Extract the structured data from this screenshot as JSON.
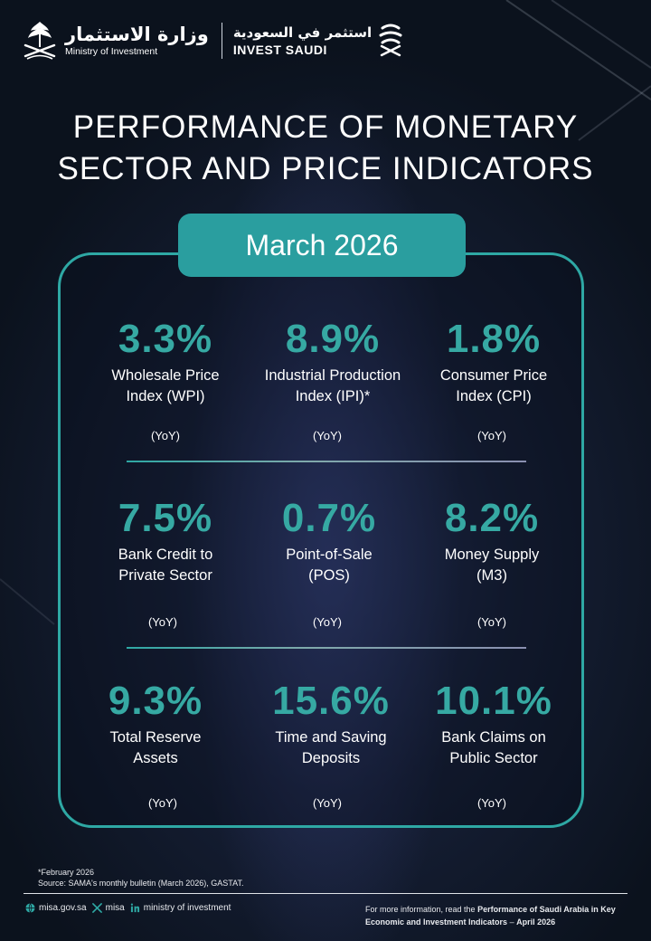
{
  "header": {
    "ministry_ar": "وزارة الاستثمار",
    "ministry_en": "Ministry of Investment",
    "invest_ar": "استثمر في السعودية",
    "invest_en": "INVEST SAUDI",
    "icons": [
      "saudi-emblem-icon",
      "invest-saudi-logo-icon"
    ]
  },
  "title": {
    "line1": "PERFORMANCE OF MONETARY",
    "line2": "SECTOR AND PRICE INDICATORS"
  },
  "period": "March 2026",
  "indicators": [
    {
      "value": "3.3",
      "unit": "%",
      "label1": "Wholesale Price",
      "label2": "Index (WPI)",
      "basis": "(YoY)"
    },
    {
      "value": "8.9",
      "unit": "%",
      "label1": "Industrial Production",
      "label2": "Index (IPI)*",
      "basis": "(YoY)"
    },
    {
      "value": "1.8",
      "unit": "%",
      "label1": "Consumer Price",
      "label2": "Index (CPI)",
      "basis": "(YoY)"
    },
    {
      "value": "7.5",
      "unit": "%",
      "label1": "Bank Credit to",
      "label2": "Private Sector",
      "basis": "(YoY)"
    },
    {
      "value": "0.7",
      "unit": "%",
      "label1": "Point-of-Sale",
      "label2": "(POS)",
      "basis": "(YoY)"
    },
    {
      "value": "8.2",
      "unit": "%",
      "label1": "Money Supply",
      "label2": "(M3)",
      "basis": "(YoY)"
    },
    {
      "value": "9.3",
      "unit": "%",
      "label1": "Total Reserve",
      "label2": "Assets",
      "basis": "(YoY)"
    },
    {
      "value": "15.6",
      "unit": "%",
      "label1": "Time and Saving",
      "label2": "Deposits",
      "basis": "(YoY)"
    },
    {
      "value": "10.1",
      "unit": "%",
      "label1": "Bank Claims on",
      "label2": "Public Sector",
      "basis": "(YoY)"
    }
  ],
  "footnotes": {
    "note": "*February 2026",
    "source": "Source: SAMA's monthly bulletin (March 2026), GASTAT."
  },
  "footer": {
    "website": "misa.gov.sa",
    "x_handle": "misa",
    "linkedin": "ministry of investment",
    "more_prefix": "For more information, read the",
    "more_title": "Performance of Saudi Arabia in Key Economic and Investment Indicators",
    "more_dash": "–",
    "more_date": "April 2026"
  },
  "colors": {
    "accent": "#2ea8a4",
    "pill": "#2a9e9f",
    "value_text": "#36a9a3",
    "background": "#0b121d"
  }
}
